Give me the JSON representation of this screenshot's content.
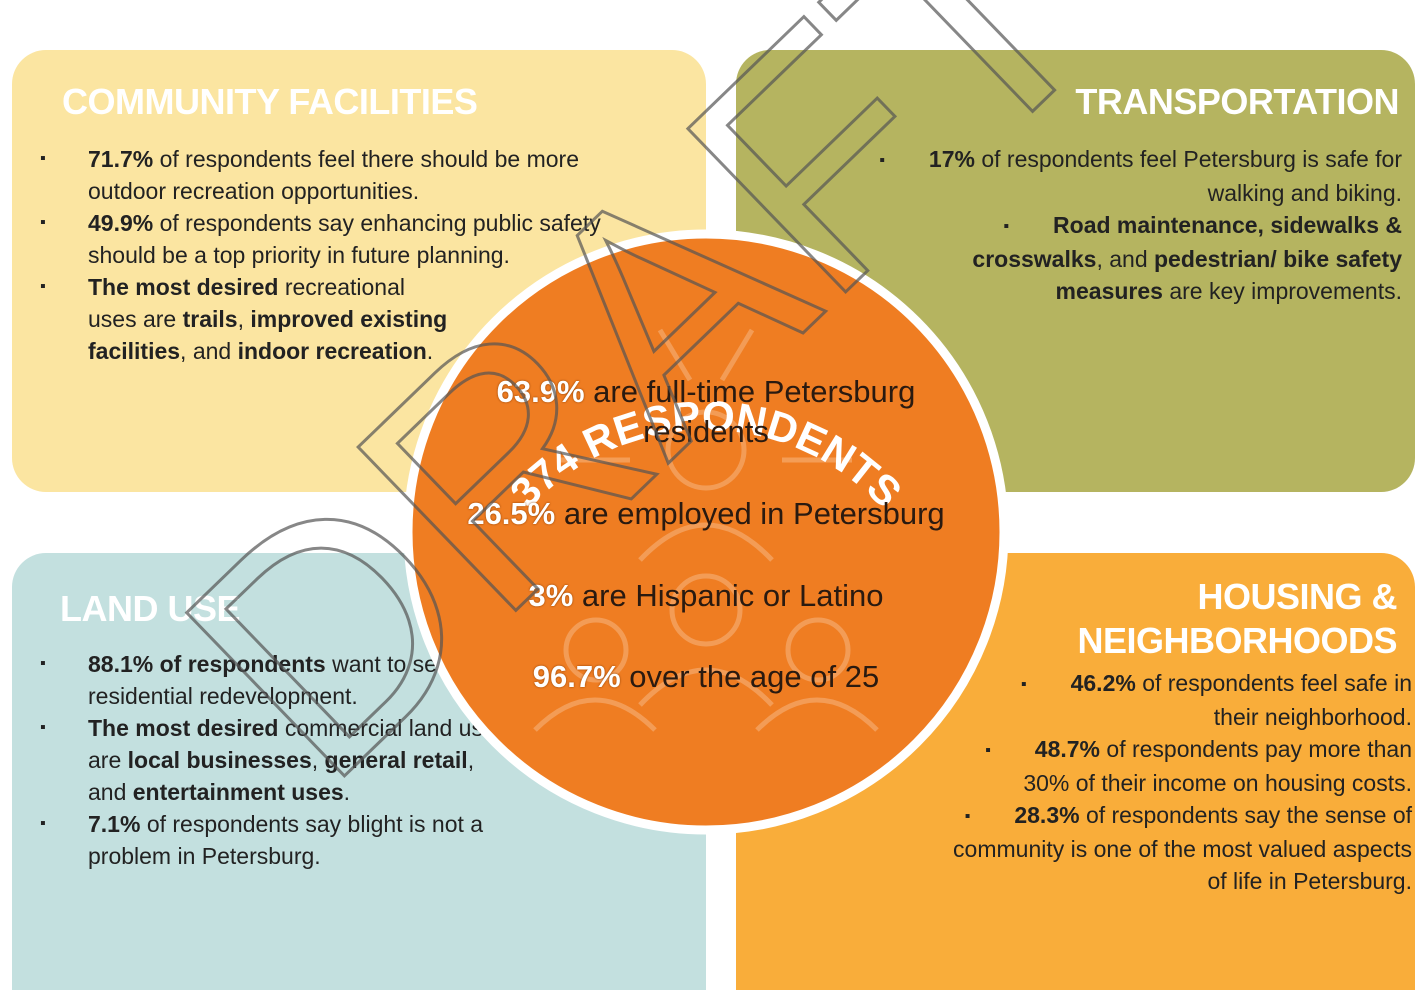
{
  "watermark": "DRAFT",
  "panels": [
    {
      "title": "COMMUNITY FACILITIES",
      "items": [
        [
          {
            "text": "71.7%",
            "bold": true
          },
          {
            "text": " of respondents feel there should be more outdoor recreation opportunities."
          }
        ],
        [
          {
            "text": "49.9%",
            "bold": true
          },
          {
            "text": " of respondents say enhancing public safety should be a top priority in future planning."
          }
        ],
        [
          {
            "text": "The most desired",
            "bold": true
          },
          {
            "text": " recreational uses are "
          },
          {
            "text": "trails",
            "bold": true
          },
          {
            "text": ", "
          },
          {
            "text": "improved existing facilities",
            "bold": true
          },
          {
            "text": ", and "
          },
          {
            "text": "indoor recreation",
            "bold": true
          },
          {
            "text": "."
          }
        ]
      ]
    },
    {
      "title": "TRANSPORTATION",
      "items": [
        [
          {
            "text": "17%",
            "bold": true
          },
          {
            "text": " of respondents feel Petersburg is safe for walking and biking."
          }
        ],
        [
          {
            "text": "Road maintenance, sidewalks & crosswalks",
            "bold": true
          },
          {
            "text": ", and "
          },
          {
            "text": "pedestrian/ bike safety measures",
            "bold": true
          },
          {
            "text": " are key improvements."
          }
        ]
      ]
    },
    {
      "title": "LAND USE",
      "items": [
        [
          {
            "text": "88.1% of respondents",
            "bold": true
          },
          {
            "text": " want to see residential redevelopment."
          }
        ],
        [
          {
            "text": "The most desired",
            "bold": true
          },
          {
            "text": " commercial land uses are "
          },
          {
            "text": "local businesses",
            "bold": true
          },
          {
            "text": ", "
          },
          {
            "text": "general retail",
            "bold": true
          },
          {
            "text": ", and "
          },
          {
            "text": "entertainment uses",
            "bold": true
          },
          {
            "text": "."
          }
        ],
        [
          {
            "text": "7.1%",
            "bold": true
          },
          {
            "text": " of respondents say blight is not a problem in Petersburg."
          }
        ]
      ]
    },
    {
      "title": "HOUSING & NEIGHBORHOODS",
      "items": [
        [
          {
            "text": "46.2%",
            "bold": true
          },
          {
            "text": " of respondents feel safe in their neighborhood."
          }
        ],
        [
          {
            "text": "48.7%",
            "bold": true
          },
          {
            "text": " of respondents pay more than 30% of their income on housing costs."
          }
        ],
        [
          {
            "text": "28.3%",
            "bold": true
          },
          {
            "text": " of respondents say the sense of community is one of the most valued aspects of life in Petersburg."
          }
        ]
      ]
    }
  ],
  "center": {
    "title": "374 RESPONDENTS",
    "stats": [
      [
        {
          "text": "63.9%",
          "bold": true
        },
        {
          "text": " are full-time Petersburg residents"
        }
      ],
      [
        {
          "text": "26.5%",
          "bold": true
        },
        {
          "text": " are employed in Petersburg"
        }
      ],
      [
        {
          "text": "3%",
          "bold": true
        },
        {
          "text": " are Hispanic or Latino"
        }
      ],
      [
        {
          "text": "96.7%",
          "bold": true
        },
        {
          "text": " over the age of 25"
        }
      ]
    ]
  }
}
